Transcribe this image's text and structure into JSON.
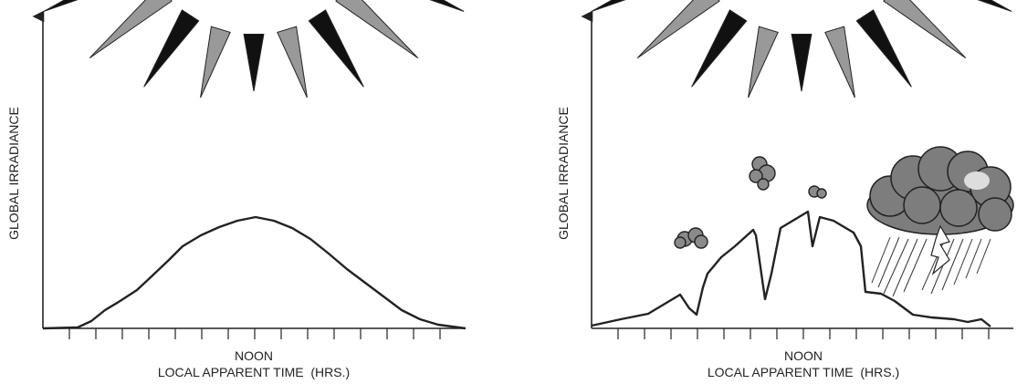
{
  "panels": [
    {
      "y_label": "GLOBAL IRRADIANCE",
      "x_label": {
        "line1": "NOON",
        "line2": "LOCAL APPARENT TIME  (HRS.)"
      }
    },
    {
      "y_label": "GLOBAL IRRADIANCE",
      "x_label": {
        "line1": "NOON",
        "line2": "LOCAL APPARENT TIME  (HRS.)"
      }
    }
  ]
}
